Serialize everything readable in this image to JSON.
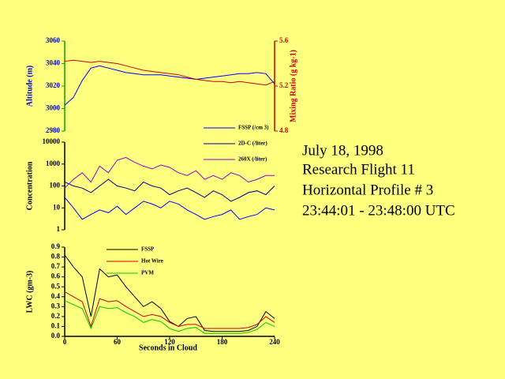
{
  "chart_data": [
    {
      "type": "line",
      "ylabel": "Altitude (m)",
      "y2label": "Mixing Ratio (g kg-1)",
      "x": [
        0,
        10,
        20,
        30,
        40,
        50,
        60,
        70,
        80,
        90,
        100,
        110,
        120,
        130,
        140,
        150,
        160,
        170,
        180,
        190,
        200,
        210,
        220,
        230,
        240
      ],
      "xlim": [
        0,
        240
      ],
      "ylim": [
        2980,
        3060
      ],
      "yticks": [
        2980,
        3000,
        3020,
        3040,
        3060
      ],
      "y2lim": [
        4.8,
        5.6
      ],
      "y2ticks": [
        4.8,
        5.2,
        5.6
      ],
      "series": [
        {
          "color": "#0000ff",
          "values": [
            3003,
            3010,
            3025,
            3036,
            3038,
            3036,
            3034,
            3032,
            3031,
            3030,
            3030,
            3030,
            3029,
            3028,
            3027,
            3026,
            3027,
            3028,
            3029,
            3030,
            3031,
            3031,
            3032,
            3031,
            3022
          ]
        },
        {
          "color": "#cc0000",
          "axis": "y2",
          "values": [
            5.42,
            5.43,
            5.42,
            5.41,
            5.42,
            5.41,
            5.4,
            5.38,
            5.36,
            5.34,
            5.33,
            5.32,
            5.31,
            5.3,
            5.28,
            5.26,
            5.25,
            5.24,
            5.24,
            5.23,
            5.24,
            5.23,
            5.22,
            5.21,
            5.24
          ]
        }
      ]
    },
    {
      "type": "line",
      "ylabel": "Concentration",
      "yscale": "log",
      "x": [
        0,
        10,
        20,
        30,
        40,
        50,
        60,
        70,
        80,
        90,
        100,
        110,
        120,
        130,
        140,
        150,
        160,
        170,
        180,
        190,
        200,
        210,
        220,
        230,
        240
      ],
      "xlim": [
        0,
        240
      ],
      "ylim": [
        1,
        10000
      ],
      "yticks": [
        1,
        10,
        100,
        1000,
        10000
      ],
      "series": [
        {
          "name": "FSSP (/cm 3)",
          "color": "#0000ff",
          "values": [
            30,
            10,
            3,
            5,
            8,
            6,
            12,
            5,
            10,
            20,
            15,
            10,
            20,
            15,
            8,
            5,
            3,
            4,
            5,
            8,
            3,
            4,
            5,
            10,
            8
          ]
        },
        {
          "name": "2D-C (/liter)",
          "color": "#000080",
          "values": [
            150,
            100,
            80,
            50,
            100,
            200,
            100,
            80,
            60,
            150,
            100,
            80,
            40,
            60,
            80,
            50,
            30,
            60,
            40,
            20,
            30,
            50,
            60,
            40,
            100
          ]
        },
        {
          "name": "260X (/liter)",
          "color": "#9900cc",
          "values": [
            80,
            200,
            400,
            150,
            800,
            400,
            1500,
            2000,
            1200,
            800,
            600,
            900,
            700,
            400,
            300,
            500,
            200,
            300,
            200,
            400,
            300,
            150,
            200,
            300,
            300
          ]
        }
      ]
    },
    {
      "type": "line",
      "ylabel": "LWC (gm-3)",
      "xlabel": "Seconds in Cloud",
      "x": [
        0,
        10,
        20,
        30,
        40,
        50,
        60,
        70,
        80,
        90,
        100,
        110,
        120,
        130,
        140,
        150,
        160,
        170,
        180,
        190,
        200,
        210,
        220,
        230,
        240
      ],
      "xlim": [
        0,
        240
      ],
      "xticks": [
        0,
        60,
        120,
        180,
        240
      ],
      "ylim": [
        0,
        0.9
      ],
      "yticks": [
        {
          "value": 0,
          "label": "0.0"
        },
        0.1,
        0.2,
        0.3,
        0.4,
        0.5,
        0.6,
        0.7,
        0.8,
        0.9
      ],
      "series": [
        {
          "name": "FSSP",
          "color": "#000000",
          "values": [
            0.82,
            0.7,
            0.6,
            0.2,
            0.68,
            0.6,
            0.62,
            0.5,
            0.4,
            0.3,
            0.35,
            0.28,
            0.15,
            0.1,
            0.18,
            0.2,
            0.06,
            0.05,
            0.05,
            0.05,
            0.05,
            0.06,
            0.1,
            0.25,
            0.18
          ]
        },
        {
          "name": "Hot Wire",
          "color": "#cc0000",
          "values": [
            0.45,
            0.4,
            0.35,
            0.1,
            0.38,
            0.35,
            0.36,
            0.3,
            0.25,
            0.2,
            0.22,
            0.2,
            0.14,
            0.1,
            0.12,
            0.12,
            0.08,
            0.08,
            0.08,
            0.08,
            0.08,
            0.09,
            0.12,
            0.2,
            0.14
          ]
        },
        {
          "name": "PVM",
          "color": "#00cc00",
          "values": [
            0.36,
            0.32,
            0.28,
            0.08,
            0.3,
            0.28,
            0.29,
            0.24,
            0.2,
            0.14,
            0.17,
            0.15,
            0.08,
            0.05,
            0.08,
            0.09,
            0.03,
            0.03,
            0.03,
            0.03,
            0.03,
            0.04,
            0.07,
            0.14,
            0.1
          ]
        }
      ]
    }
  ],
  "info": [
    "July 18, 1998",
    "Research Flight 11",
    "Horizontal Profile # 3",
    "23:44:01 - 23:48:00 UTC"
  ]
}
